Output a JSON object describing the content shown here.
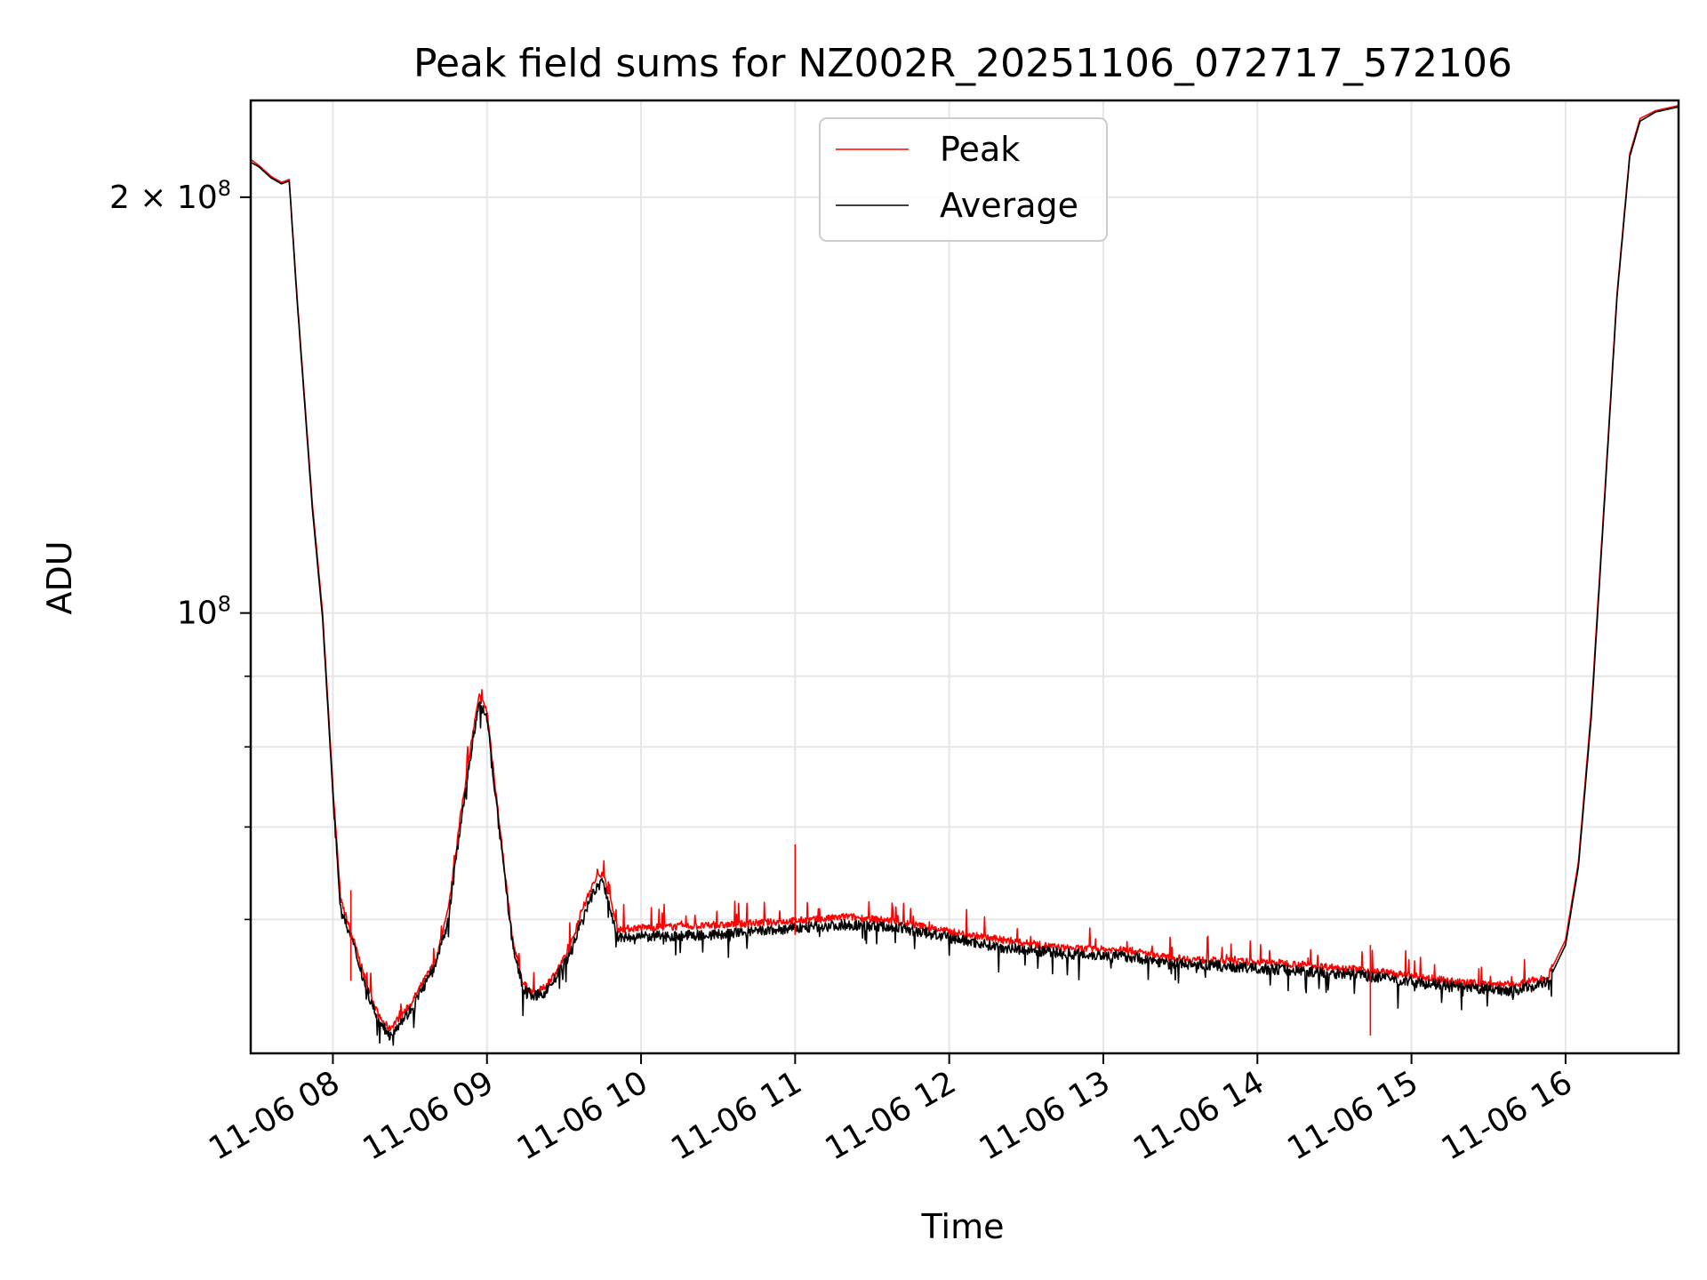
{
  "chart_data": {
    "type": "line",
    "title": "Peak field sums for NZ002R_20251106_072717_572106",
    "xlabel": "Time",
    "ylabel": "ADU",
    "yscale": "log",
    "grid": true,
    "legend_position": "top-center",
    "xlim": [
      "2025-11-06 07:28",
      "2025-11-06 16:44"
    ],
    "ylim": [
      48000000,
      235000000
    ],
    "x_ticks": [
      "11-06 08",
      "11-06 09",
      "11-06 10",
      "11-06 11",
      "11-06 12",
      "11-06 13",
      "11-06 14",
      "11-06 15",
      "11-06 16"
    ],
    "y_ticks": [
      {
        "value": 100000000,
        "base": "10",
        "exp": "8",
        "coef": ""
      },
      {
        "value": 200000000,
        "base": "10",
        "exp": "8",
        "coef": "2 × "
      }
    ],
    "y_minor_ticks": [
      60000000,
      70000000,
      80000000,
      90000000
    ],
    "series": [
      {
        "name": "Peak",
        "color": "#ff0000",
        "points": [
          [
            "07:28",
            213000000
          ],
          [
            "07:31",
            211000000
          ],
          [
            "07:36",
            207000000
          ],
          [
            "07:40",
            205000000
          ],
          [
            "07:43",
            206000000
          ],
          [
            "07:46",
            170000000
          ],
          [
            "07:52",
            120000000
          ],
          [
            "07:56",
            100000000
          ],
          [
            "08:00",
            75000000
          ],
          [
            "08:03",
            62000000
          ],
          [
            "08:08",
            58000000
          ],
          [
            "08:13",
            54000000
          ],
          [
            "08:18",
            51000000
          ],
          [
            "08:22",
            50000000
          ],
          [
            "08:26",
            51000000
          ],
          [
            "08:30",
            52000000
          ],
          [
            "08:35",
            54000000
          ],
          [
            "08:40",
            56000000
          ],
          [
            "08:45",
            61000000
          ],
          [
            "08:50",
            72000000
          ],
          [
            "08:55",
            83000000
          ],
          [
            "08:57",
            87000000
          ],
          [
            "09:00",
            85000000
          ],
          [
            "09:05",
            70000000
          ],
          [
            "09:10",
            58000000
          ],
          [
            "09:14",
            54000000
          ],
          [
            "09:18",
            53000000
          ],
          [
            "09:22",
            53500000
          ],
          [
            "09:27",
            55000000
          ],
          [
            "09:32",
            57000000
          ],
          [
            "09:37",
            61000000
          ],
          [
            "09:42",
            64000000
          ],
          [
            "09:45",
            65000000
          ],
          [
            "09:48",
            62000000
          ],
          [
            "09:51",
            59000000
          ],
          [
            "10:00",
            59200000
          ],
          [
            "10:30",
            59400000
          ],
          [
            "10:55",
            59800000
          ],
          [
            "11:10",
            60000000
          ],
          [
            "11:20",
            60300000
          ],
          [
            "11:40",
            59800000
          ],
          [
            "12:00",
            58800000
          ],
          [
            "12:20",
            58000000
          ],
          [
            "12:45",
            57200000
          ],
          [
            "13:10",
            57000000
          ],
          [
            "13:25",
            56300000
          ],
          [
            "13:45",
            56000000
          ],
          [
            "14:10",
            55800000
          ],
          [
            "14:40",
            55200000
          ],
          [
            "15:00",
            54600000
          ],
          [
            "15:20",
            54000000
          ],
          [
            "15:40",
            53800000
          ],
          [
            "15:53",
            54500000
          ],
          [
            "16:00",
            58000000
          ],
          [
            "16:05",
            66000000
          ],
          [
            "16:10",
            85000000
          ],
          [
            "16:15",
            120000000
          ],
          [
            "16:20",
            170000000
          ],
          [
            "16:25",
            215000000
          ],
          [
            "16:29",
            228000000
          ],
          [
            "16:35",
            231000000
          ],
          [
            "16:44",
            233000000
          ]
        ]
      },
      {
        "name": "Average",
        "color": "#000000",
        "points": [
          [
            "07:28",
            212000000
          ],
          [
            "07:31",
            210500000
          ],
          [
            "07:36",
            206500000
          ],
          [
            "07:40",
            204500000
          ],
          [
            "07:43",
            205500000
          ],
          [
            "07:46",
            169000000
          ],
          [
            "07:52",
            119000000
          ],
          [
            "07:56",
            99000000
          ],
          [
            "08:00",
            74000000
          ],
          [
            "08:03",
            61000000
          ],
          [
            "08:08",
            57500000
          ],
          [
            "08:13",
            53500000
          ],
          [
            "08:18",
            50500000
          ],
          [
            "08:22",
            49500000
          ],
          [
            "08:26",
            50500000
          ],
          [
            "08:30",
            51500000
          ],
          [
            "08:35",
            53500000
          ],
          [
            "08:40",
            55500000
          ],
          [
            "08:45",
            60000000
          ],
          [
            "08:50",
            71000000
          ],
          [
            "08:55",
            82000000
          ],
          [
            "08:57",
            86000000
          ],
          [
            "09:00",
            84000000
          ],
          [
            "09:05",
            69000000
          ],
          [
            "09:10",
            57500000
          ],
          [
            "09:14",
            53500000
          ],
          [
            "09:18",
            52800000
          ],
          [
            "09:22",
            53000000
          ],
          [
            "09:27",
            54500000
          ],
          [
            "09:32",
            56500000
          ],
          [
            "09:37",
            60000000
          ],
          [
            "09:42",
            63000000
          ],
          [
            "09:45",
            64000000
          ],
          [
            "09:48",
            61000000
          ],
          [
            "09:51",
            58200000
          ],
          [
            "10:00",
            58300000
          ],
          [
            "10:30",
            58500000
          ],
          [
            "10:55",
            59000000
          ],
          [
            "11:10",
            59300000
          ],
          [
            "11:20",
            59500000
          ],
          [
            "11:40",
            59200000
          ],
          [
            "12:00",
            58200000
          ],
          [
            "12:20",
            57300000
          ],
          [
            "12:45",
            56700000
          ],
          [
            "13:10",
            56400000
          ],
          [
            "13:25",
            55800000
          ],
          [
            "13:45",
            55500000
          ],
          [
            "14:10",
            55200000
          ],
          [
            "14:40",
            54700000
          ],
          [
            "15:00",
            54100000
          ],
          [
            "15:20",
            53500000
          ],
          [
            "15:40",
            53300000
          ],
          [
            "15:53",
            54000000
          ],
          [
            "16:00",
            57500000
          ],
          [
            "16:05",
            65500000
          ],
          [
            "16:10",
            84000000
          ],
          [
            "16:15",
            119000000
          ],
          [
            "16:20",
            169000000
          ],
          [
            "16:25",
            214000000
          ],
          [
            "16:29",
            227000000
          ],
          [
            "16:35",
            230500000
          ],
          [
            "16:44",
            232500000
          ]
        ]
      }
    ],
    "annotations": [
      {
        "series": "Peak",
        "time": "11:00",
        "value": 68000000,
        "note_type": "spike"
      },
      {
        "series": "Peak",
        "time": "08:07",
        "value": 63000000,
        "note_type": "spike"
      },
      {
        "series": "Peak",
        "time": "14:44",
        "value": 57500000,
        "note_type": "spike"
      }
    ]
  }
}
